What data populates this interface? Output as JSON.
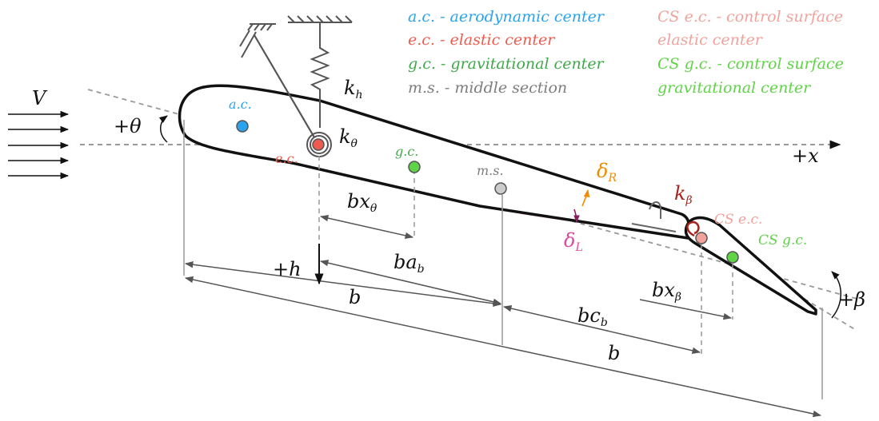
{
  "legend": {
    "ac": "a.c. - aerodynamic center",
    "ec": "e.c. - elastic center",
    "gc": "g.c. - gravitational center",
    "ms": "m.s. - middle section",
    "cs_ec_1": "CS e.c. - control surface",
    "cs_ec_2": "elastic center",
    "cs_gc_1": "CS g.c. - control surface",
    "cs_gc_2": "gravitational center"
  },
  "points": {
    "ac": "a.c.",
    "ec": "e.c.",
    "gc": "g.c.",
    "ms": "m.s.",
    "cs_ec": "CS e.c.",
    "cs_gc": "CS g.c."
  },
  "symbols": {
    "V": "V",
    "theta": "+θ",
    "x": "+x",
    "h": "+h",
    "beta": "+β",
    "k": "k",
    "k_h_sub": "h",
    "k_theta_sub": "θ",
    "k_beta_sub": "β",
    "delta": "δ",
    "delta_R_sub": "R",
    "delta_L_sub": "L",
    "bx": "bx",
    "bx_theta_sub": "θ",
    "bx_beta_sub": "β",
    "ba": "ba",
    "ba_sub": "b",
    "bc": "bc",
    "bc_sub": "b",
    "b1": "b",
    "b2": "b"
  },
  "colors": {
    "ac": "#29a3ef",
    "ec": "#ee5b4e",
    "gc": "#3fa84a",
    "gc_dot": "#5fd447",
    "ms": "#7d7d7d",
    "cs_ec": "#f1a39b",
    "cs_gc": "#5fd447",
    "delta_R": "#f08c00",
    "delta_L": "#e0489a",
    "k_beta": "#a5231c",
    "wedge_R": "#fff4b3",
    "wedge_L": "#f9c8df"
  }
}
